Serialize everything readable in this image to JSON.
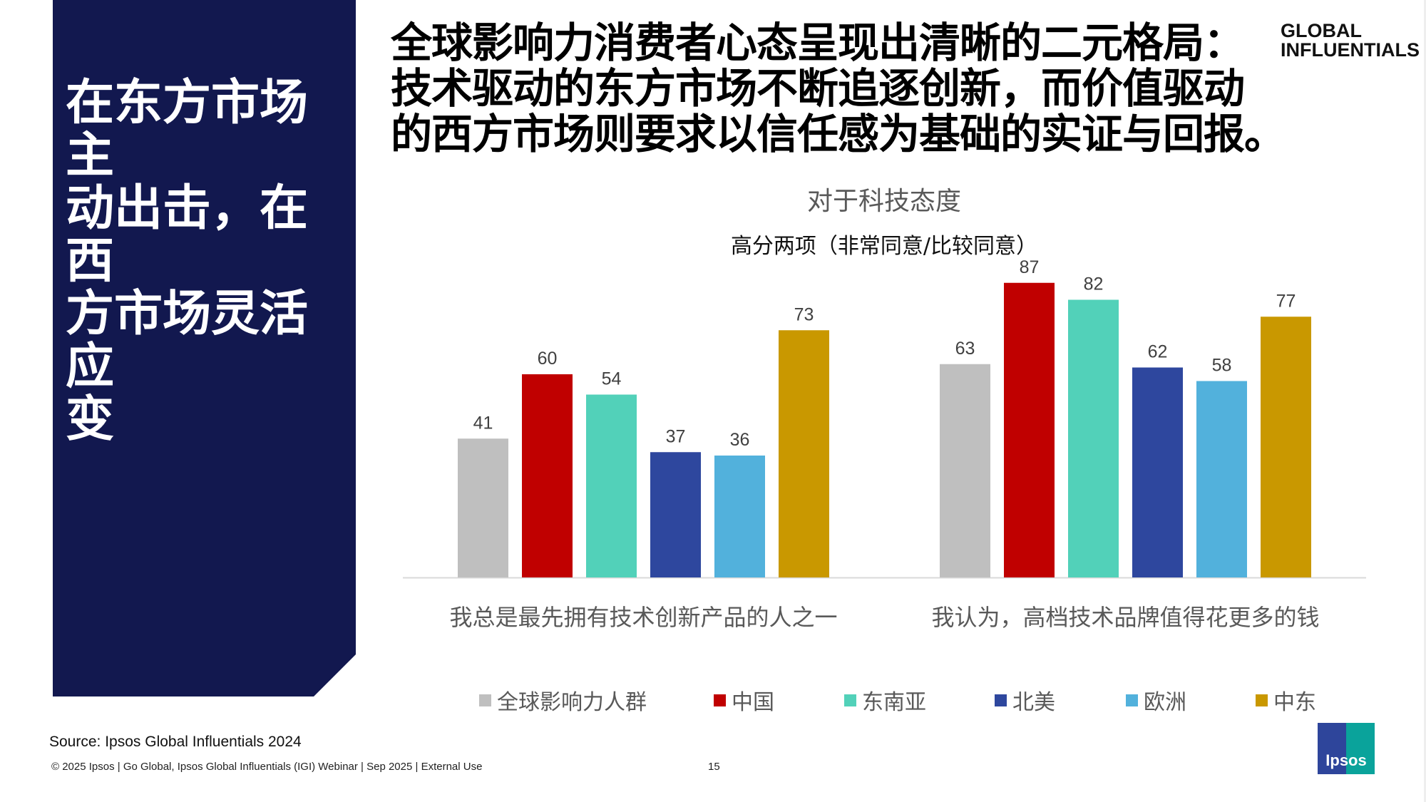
{
  "sidebar": {
    "headline_lines": [
      "在东方市场主",
      "动出击，在西",
      "方市场灵活应",
      "变"
    ]
  },
  "header": {
    "title_lines": [
      "全球影响力消费者心态呈现出清晰的二元格局：",
      "技术驱动的东方市场不断追逐创新，而价值驱动",
      "的西方市场则要求以信任感为基础的实证与回报。"
    ],
    "brand_lines": [
      "GLOBAL",
      "INFLUENTIALS"
    ]
  },
  "chart_data": {
    "type": "bar",
    "title": "对于科技态度",
    "subtitle": "高分两项（非常同意/比较同意）",
    "categories": [
      "我总是最先拥有技术创新产品的人之一",
      "我认为，高档技术品牌值得花更多的钱"
    ],
    "series": [
      {
        "name": "全球影响力人群",
        "color": "#BFBFBF",
        "values": [
          41,
          63
        ]
      },
      {
        "name": "中国",
        "color": "#C00000",
        "values": [
          60,
          87
        ]
      },
      {
        "name": "东南亚",
        "color": "#52D1B9",
        "values": [
          54,
          82
        ]
      },
      {
        "name": "北美",
        "color": "#2E479E",
        "values": [
          37,
          62
        ]
      },
      {
        "name": "欧洲",
        "color": "#52B1DC",
        "values": [
          36,
          58
        ]
      },
      {
        "name": "中东",
        "color": "#C99800",
        "values": [
          73,
          77
        ]
      }
    ],
    "ylim": [
      0,
      100
    ],
    "grid": false,
    "legend": "bottom"
  },
  "footer": {
    "source": "Source: Ipsos Global Influentials 2024",
    "copyright": "© 2025 Ipsos | Go Global, Ipsos Global Influentials (IGI) Webinar  | Sep 2025 | External Use",
    "page": "15",
    "logo": "Ipsos"
  }
}
